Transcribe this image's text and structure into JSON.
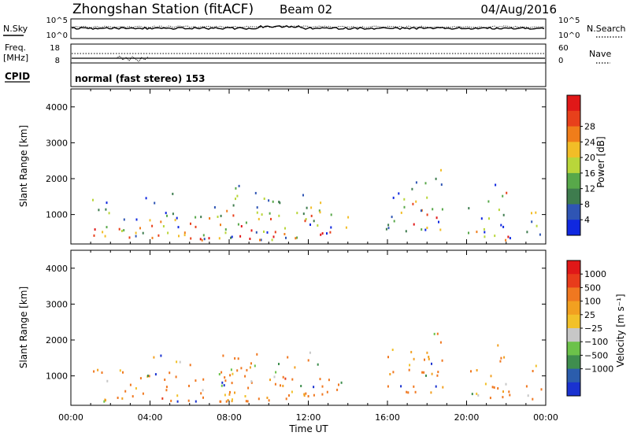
{
  "header": {
    "station": "Zhongshan Station (fitACF)",
    "beam": "Beam 02",
    "date": "04/Aug/2016"
  },
  "status_panels": {
    "nsky_label": "N.Sky",
    "nsky_ticks": [
      "10^5",
      "10^0"
    ],
    "nsearch_label": "N.Search",
    "nsearch_ticks": [
      "10^5",
      "10^0"
    ],
    "freq_label": "Freq.",
    "freq_unit": "[MHz]",
    "freq_ticks": [
      "18",
      "8"
    ],
    "nave_label": "Nave",
    "nave_ticks": [
      "60",
      "0"
    ],
    "cpid_label": "CPID",
    "cpid_text": "normal (fast stereo) 153"
  },
  "chart_data": [
    {
      "type": "heatmap",
      "name": "power-panel",
      "ylabel": "Slant Range [km]",
      "yticks": [
        "1000",
        "2000",
        "3000",
        "4000"
      ],
      "ylim": [
        180,
        4500
      ],
      "xlim": [
        0,
        24
      ],
      "colorbar": {
        "label": "Power [dB]",
        "ticks": [
          "4",
          "8",
          "12",
          "16",
          "20",
          "24",
          "28"
        ],
        "colors": [
          "#1028e0",
          "#2f55b4",
          "#3e7c4e",
          "#58a84a",
          "#b9d63a",
          "#f2bd27",
          "#f07d1a",
          "#e8401b",
          "#e01818"
        ]
      },
      "scatter_regions": [
        {
          "t0": 0.9,
          "t1": 1.9,
          "r0": 250,
          "r1": 1600
        },
        {
          "t0": 2.1,
          "t1": 3.5,
          "r0": 300,
          "r1": 1200
        },
        {
          "t0": 3.6,
          "t1": 5.5,
          "r0": 250,
          "r1": 1550
        },
        {
          "t0": 5.7,
          "t1": 8.3,
          "r0": 250,
          "r1": 1400
        },
        {
          "t0": 7.5,
          "t1": 10.2,
          "r0": 250,
          "r1": 1800
        },
        {
          "t0": 10.2,
          "t1": 12.6,
          "r0": 300,
          "r1": 1700
        },
        {
          "t0": 12.5,
          "t1": 14.0,
          "r0": 400,
          "r1": 1100
        },
        {
          "t0": 15.9,
          "t1": 17.2,
          "r0": 500,
          "r1": 1700
        },
        {
          "t0": 17.2,
          "t1": 18.8,
          "r0": 500,
          "r1": 2300
        },
        {
          "t0": 20.0,
          "t1": 22.3,
          "r0": 250,
          "r1": 1200
        },
        {
          "t0": 21.0,
          "t1": 22.0,
          "r0": 1300,
          "r1": 1900
        },
        {
          "t0": 23.0,
          "t1": 23.8,
          "r0": 300,
          "r1": 1300
        }
      ]
    },
    {
      "type": "heatmap",
      "name": "velocity-panel",
      "ylabel": "Slant Range [km]",
      "yticks": [
        "1000",
        "2000",
        "3000",
        "4000"
      ],
      "ylim": [
        180,
        4500
      ],
      "xlim": [
        0,
        24
      ],
      "xlabel": "Time UT",
      "xticks": [
        "00:00",
        "04:00",
        "08:00",
        "12:00",
        "16:00",
        "20:00",
        "00:00"
      ],
      "colorbar": {
        "label": "Velocity [m s⁻¹]",
        "ticks": [
          "1000",
          "500",
          "100",
          "25",
          "−25",
          "−100",
          "−500",
          "−1000"
        ],
        "colors": [
          "#1a32d0",
          "#2b5dac",
          "#3f8e4e",
          "#6cc24a",
          "#c7c7c7",
          "#f2c12a",
          "#f2a020",
          "#f07820",
          "#e83c1b",
          "#e01818"
        ]
      },
      "scatter_regions": [
        {
          "t0": 0.9,
          "t1": 1.9,
          "r0": 250,
          "r1": 1300
        },
        {
          "t0": 2.1,
          "t1": 3.5,
          "r0": 300,
          "r1": 1200
        },
        {
          "t0": 3.6,
          "t1": 5.5,
          "r0": 250,
          "r1": 1550
        },
        {
          "t0": 5.7,
          "t1": 8.3,
          "r0": 250,
          "r1": 1400
        },
        {
          "t0": 7.5,
          "t1": 10.2,
          "r0": 250,
          "r1": 1800
        },
        {
          "t0": 10.2,
          "t1": 12.6,
          "r0": 300,
          "r1": 1700
        },
        {
          "t0": 12.5,
          "t1": 14.0,
          "r0": 400,
          "r1": 1100
        },
        {
          "t0": 15.9,
          "t1": 17.2,
          "r0": 500,
          "r1": 1700
        },
        {
          "t0": 17.2,
          "t1": 18.8,
          "r0": 500,
          "r1": 2300
        },
        {
          "t0": 20.0,
          "t1": 22.3,
          "r0": 250,
          "r1": 1200
        },
        {
          "t0": 21.0,
          "t1": 22.0,
          "r0": 1300,
          "r1": 1900
        },
        {
          "t0": 23.0,
          "t1": 23.8,
          "r0": 300,
          "r1": 1300
        }
      ]
    }
  ]
}
